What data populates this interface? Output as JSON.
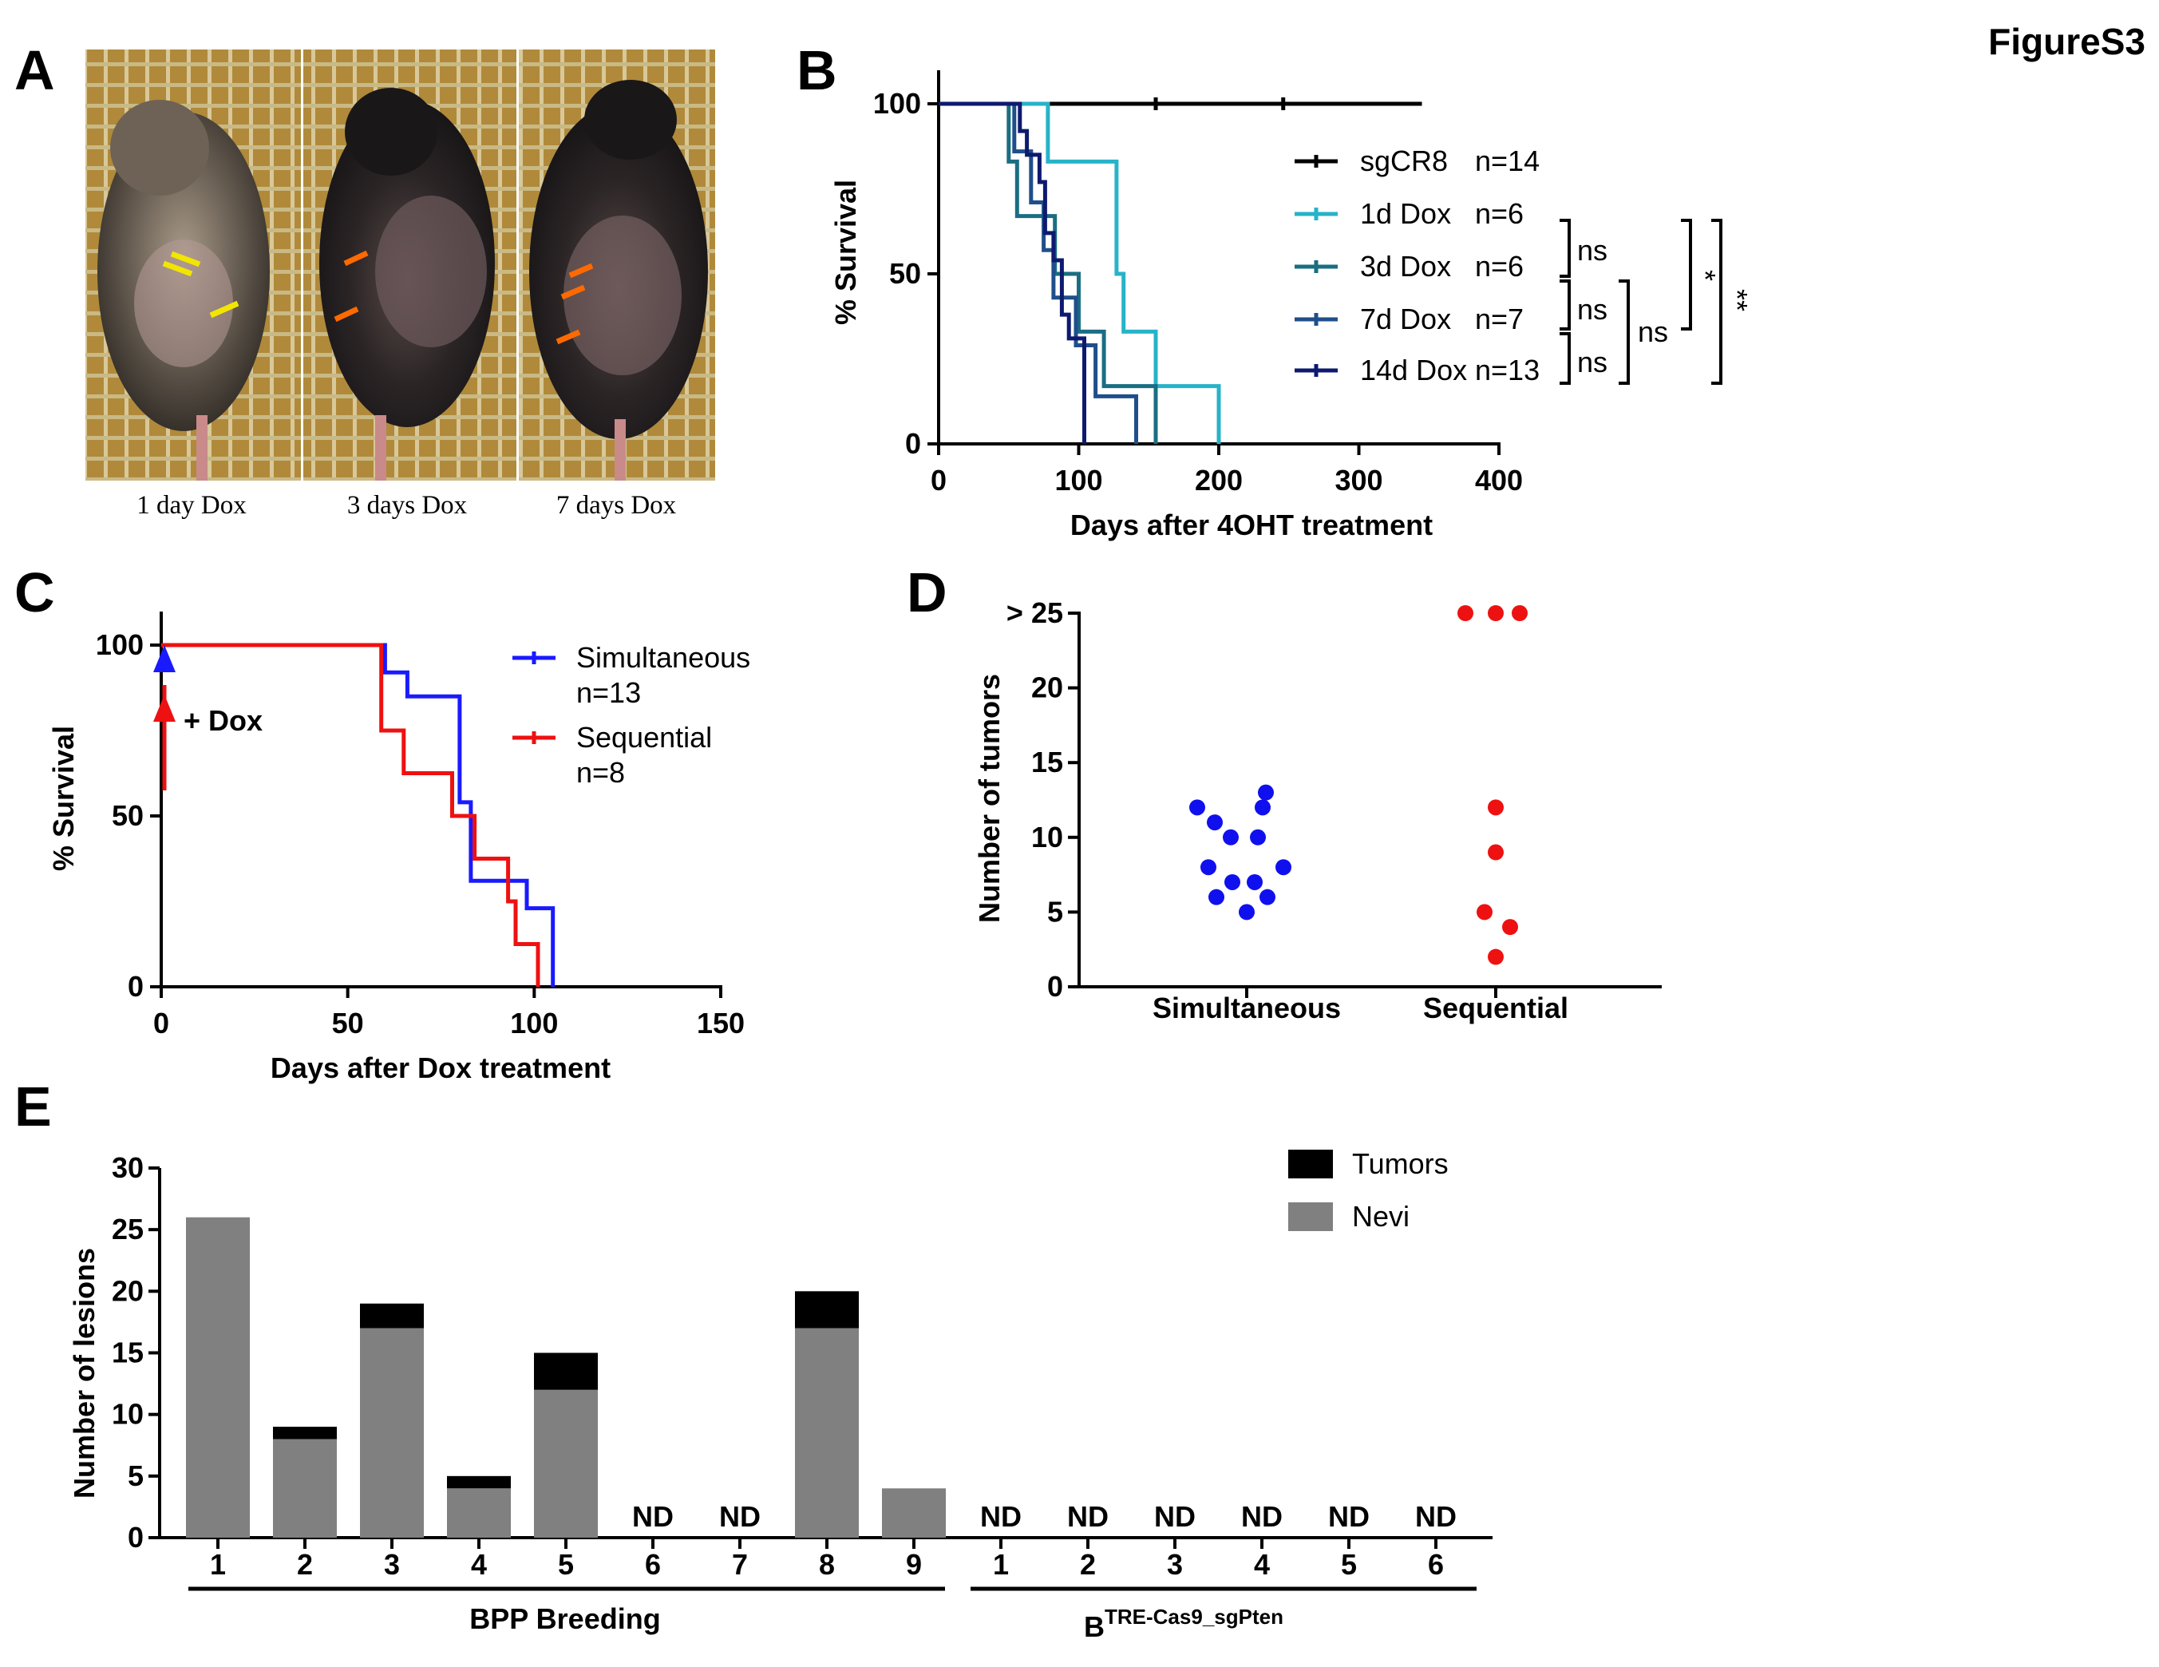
{
  "figure_title": "FigureS3",
  "panels": {
    "A": {
      "label": "A",
      "photos": [
        {
          "caption": "1 day Dox",
          "arrow_color": "#f2e600"
        },
        {
          "caption": "3 days Dox",
          "arrow_color": "#ff6a00"
        },
        {
          "caption": "7 days Dox",
          "arrow_color": "#ff6a00"
        }
      ]
    },
    "B": {
      "label": "B"
    },
    "C": {
      "label": "C",
      "annotation": "+ Dox"
    },
    "D": {
      "label": "D"
    },
    "E": {
      "label": "E"
    }
  },
  "chart_data": [
    {
      "panel": "B",
      "type": "line",
      "subtype": "kaplan-meier",
      "xlabel": "Days after 4OHT treatment",
      "ylabel": "% Survival",
      "xlim": [
        0,
        400
      ],
      "ylim": [
        0,
        100
      ],
      "xticks": [
        "0",
        "100",
        "200",
        "300",
        "400"
      ],
      "yticks": [
        "0",
        "50",
        "100"
      ],
      "series": [
        {
          "name": "sgCR8",
          "n_label": "n=14",
          "color": "#000000",
          "steps": [
            [
              0,
              100
            ],
            [
              345,
              100
            ]
          ],
          "censor": [
            155,
            246
          ]
        },
        {
          "name": "1d Dox",
          "n_label": "n=6",
          "color": "#27b3c8",
          "steps": [
            [
              0,
              100
            ],
            [
              78,
              100
            ],
            [
              78,
              83
            ],
            [
              127,
              83
            ],
            [
              127,
              50
            ],
            [
              132,
              50
            ],
            [
              132,
              33
            ],
            [
              155,
              33
            ],
            [
              155,
              17
            ],
            [
              200,
              17
            ],
            [
              200,
              0
            ]
          ],
          "censor": []
        },
        {
          "name": "3d Dox",
          "n_label": "n=6",
          "color": "#1a6e82",
          "steps": [
            [
              0,
              100
            ],
            [
              50,
              100
            ],
            [
              50,
              83
            ],
            [
              56,
              83
            ],
            [
              56,
              67
            ],
            [
              83,
              67
            ],
            [
              83,
              50
            ],
            [
              100,
              50
            ],
            [
              100,
              33
            ],
            [
              118,
              33
            ],
            [
              118,
              17
            ],
            [
              155,
              17
            ],
            [
              155,
              0
            ]
          ],
          "censor": []
        },
        {
          "name": "7d Dox",
          "n_label": "n=7",
          "color": "#1f4f8a",
          "steps": [
            [
              0,
              100
            ],
            [
              54,
              100
            ],
            [
              54,
              86
            ],
            [
              66,
              86
            ],
            [
              66,
              71
            ],
            [
              75,
              71
            ],
            [
              75,
              57
            ],
            [
              82,
              57
            ],
            [
              82,
              43
            ],
            [
              98,
              43
            ],
            [
              98,
              29
            ],
            [
              112,
              29
            ],
            [
              112,
              14
            ],
            [
              141,
              14
            ],
            [
              141,
              0
            ]
          ],
          "censor": []
        },
        {
          "name": "14d Dox",
          "n_label": "n=13",
          "color": "#0d1a6e",
          "steps": [
            [
              0,
              100
            ],
            [
              58,
              100
            ],
            [
              58,
              92
            ],
            [
              63,
              92
            ],
            [
              63,
              85
            ],
            [
              72,
              85
            ],
            [
              72,
              77
            ],
            [
              76,
              77
            ],
            [
              76,
              62
            ],
            [
              82,
              62
            ],
            [
              82,
              54
            ],
            [
              88,
              54
            ],
            [
              88,
              38
            ],
            [
              93,
              38
            ],
            [
              93,
              31
            ],
            [
              104,
              31
            ],
            [
              104,
              0
            ]
          ],
          "censor": []
        }
      ],
      "comparisons": [
        {
          "label": "ns",
          "between": [
            "1d Dox",
            "3d Dox"
          ]
        },
        {
          "label": "ns",
          "between": [
            "3d Dox",
            "7d Dox"
          ]
        },
        {
          "label": "ns",
          "between": [
            "7d Dox",
            "14d Dox"
          ]
        },
        {
          "label": "ns",
          "between": [
            "1d/3d Dox",
            "7d/14d Dox"
          ]
        },
        {
          "label": "*",
          "between": [
            "1d Dox",
            "7d Dox"
          ]
        },
        {
          "label": "**",
          "between": [
            "1d Dox",
            "14d Dox"
          ]
        }
      ]
    },
    {
      "panel": "C",
      "type": "line",
      "subtype": "kaplan-meier",
      "xlabel": "Days after Dox treatment",
      "ylabel": "% Survival",
      "xlim": [
        0,
        150
      ],
      "ylim": [
        0,
        100
      ],
      "xticks": [
        "0",
        "50",
        "100",
        "150"
      ],
      "yticks": [
        "0",
        "50",
        "100"
      ],
      "series": [
        {
          "name": "Simultaneous",
          "n_label": "n=13",
          "color": "#1a1aff",
          "steps": [
            [
              0,
              100
            ],
            [
              60,
              100
            ],
            [
              60,
              92
            ],
            [
              66,
              92
            ],
            [
              66,
              85
            ],
            [
              80,
              85
            ],
            [
              80,
              54
            ],
            [
              83,
              54
            ],
            [
              83,
              31
            ],
            [
              98,
              31
            ],
            [
              98,
              23
            ],
            [
              105,
              23
            ],
            [
              105,
              0
            ]
          ],
          "censor": []
        },
        {
          "name": "Sequential",
          "n_label": "n=8",
          "color": "#ee1111",
          "steps": [
            [
              0,
              100
            ],
            [
              59,
              100
            ],
            [
              59,
              75
            ],
            [
              65,
              75
            ],
            [
              65,
              62.5
            ],
            [
              78,
              62.5
            ],
            [
              78,
              50
            ],
            [
              84,
              50
            ],
            [
              84,
              37.5
            ],
            [
              93,
              37.5
            ],
            [
              93,
              25
            ],
            [
              95,
              25
            ],
            [
              95,
              12.5
            ],
            [
              101,
              12.5
            ],
            [
              101,
              0
            ]
          ],
          "censor": []
        }
      ]
    },
    {
      "panel": "D",
      "type": "scatter",
      "ylabel": "Number of tumors",
      "categories": [
        "Simultaneous",
        "Sequential"
      ],
      "yticks": [
        "0",
        "5",
        "10",
        "15",
        "20",
        "> 25"
      ],
      "ylim": [
        0,
        25
      ],
      "series": [
        {
          "name": "Simultaneous",
          "color": "#1010ee",
          "values": [
            13,
            12,
            12,
            11,
            10,
            10,
            8,
            8,
            7,
            7,
            6,
            6,
            5
          ]
        },
        {
          "name": "Sequential",
          "color": "#ee1111",
          "values": [
            25,
            25,
            25,
            12,
            9,
            5,
            4,
            2
          ]
        }
      ]
    },
    {
      "panel": "E",
      "type": "bar",
      "stacked": true,
      "ylabel": "Number of lesions",
      "ylim": [
        0,
        30
      ],
      "yticks": [
        "0",
        "5",
        "10",
        "15",
        "20",
        "25",
        "30"
      ],
      "categories": [
        "1",
        "2",
        "3",
        "4",
        "5",
        "6",
        "7",
        "8",
        "9",
        "1",
        "2",
        "3",
        "4",
        "5",
        "6"
      ],
      "groups": [
        {
          "label": "BPP Breeding",
          "range": [
            0,
            8
          ]
        },
        {
          "label_main": "B",
          "label_sup": "TRE-Cas9_sgPten",
          "range": [
            9,
            14
          ]
        }
      ],
      "series": [
        {
          "name": "Nevi",
          "color": "#808080",
          "values": [
            26,
            8,
            17,
            4,
            12,
            null,
            null,
            17,
            4,
            null,
            null,
            null,
            null,
            null,
            null
          ]
        },
        {
          "name": "Tumors",
          "color": "#000000",
          "values": [
            0,
            1,
            2,
            1,
            3,
            null,
            null,
            3,
            0,
            null,
            null,
            null,
            null,
            null,
            null
          ]
        }
      ],
      "nd_label": "ND"
    }
  ]
}
